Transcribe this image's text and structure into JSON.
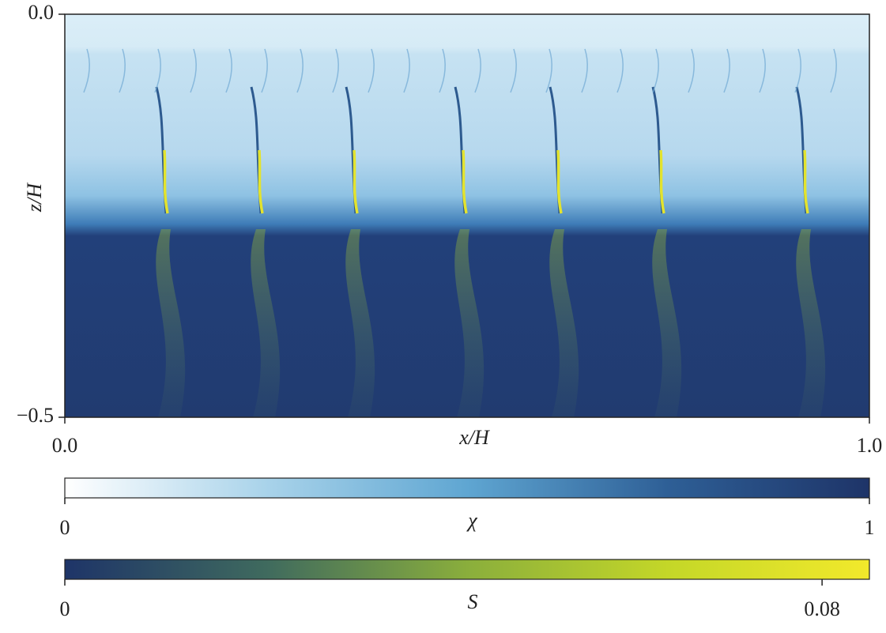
{
  "chart_data": {
    "type": "heatmap",
    "xlabel": "x/H",
    "ylabel": "z/H",
    "xlim": [
      0,
      1
    ],
    "ylim": [
      -0.5,
      0
    ],
    "xticks": [
      {
        "value": 0,
        "label": "0.0"
      },
      {
        "value": 1,
        "label": "1.0"
      }
    ],
    "yticks": [
      {
        "value": 0,
        "label": "0.0"
      },
      {
        "value": -0.5,
        "label": "−0.5"
      }
    ],
    "colorbars": [
      {
        "label": "χ",
        "lim": [
          0,
          1
        ],
        "ticks": [
          0,
          1
        ],
        "colors": [
          "#ffffff",
          "#a9d3ea",
          "#5fa6d2",
          "#2e5f96",
          "#1e3468"
        ]
      },
      {
        "label": "S",
        "lim": [
          0,
          0.085
        ],
        "ticks": [
          0,
          0.08
        ],
        "colors": [
          "#1e3468",
          "#3f6a5e",
          "#8aae3c",
          "#c4d728",
          "#f2e92b"
        ]
      }
    ]
  }
}
